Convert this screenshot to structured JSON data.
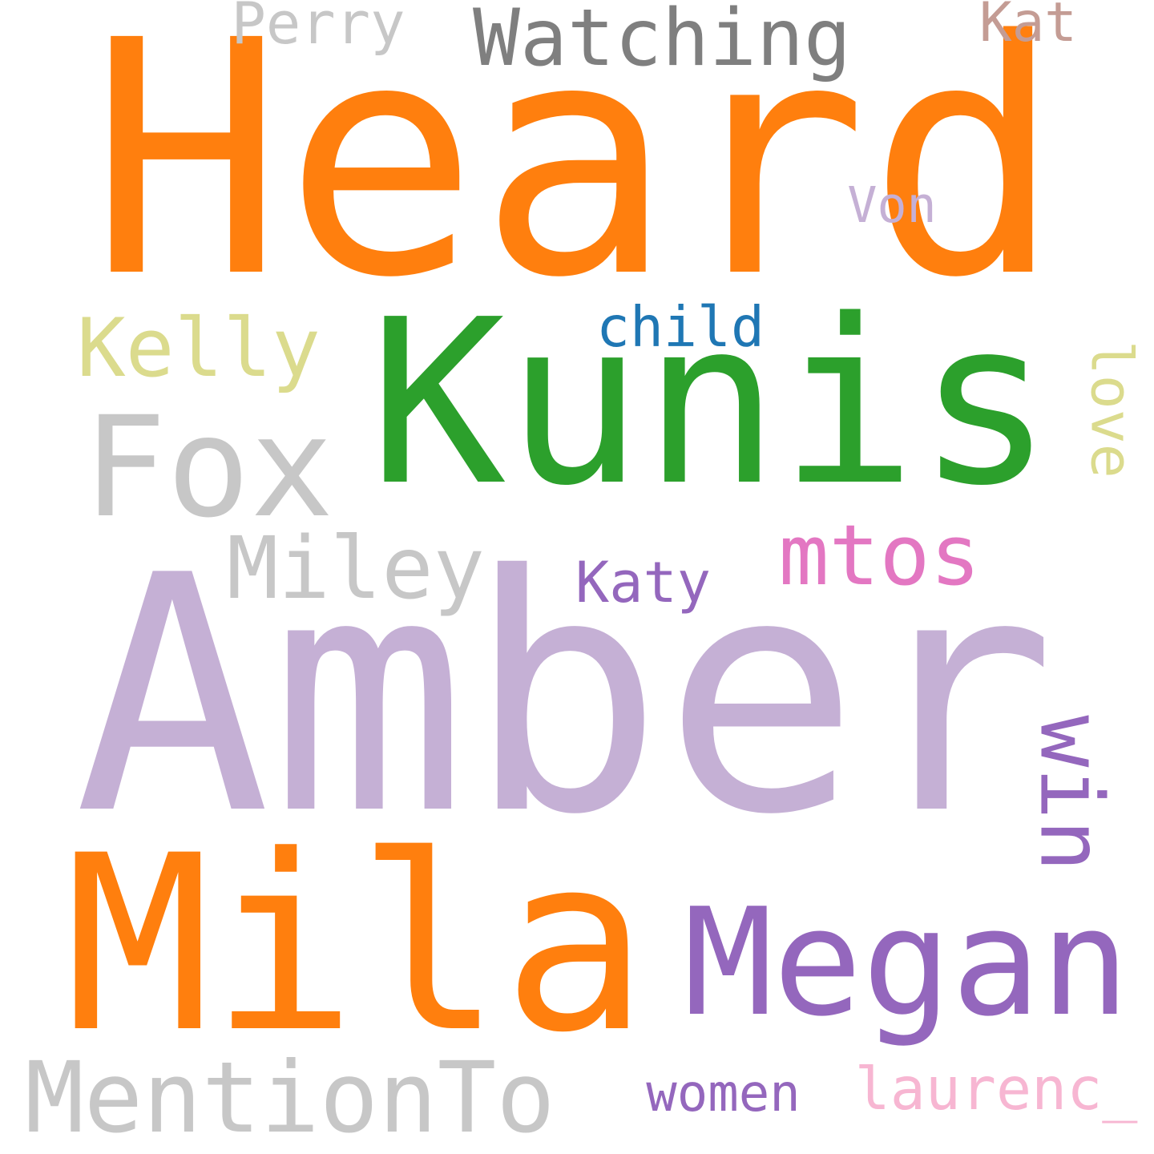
{
  "words": [
    {
      "id": "heard",
      "text": "Heard",
      "color": "#ff7f0e"
    },
    {
      "id": "amber",
      "text": "Amber",
      "color": "#c5b0d5"
    },
    {
      "id": "kunis",
      "text": "Kunis",
      "color": "#2ca02c"
    },
    {
      "id": "mila",
      "text": "Mila",
      "color": "#ff7f0e"
    },
    {
      "id": "megan",
      "text": "Megan",
      "color": "#9467bd"
    },
    {
      "id": "fox",
      "text": "Fox",
      "color": "#c7c7c7"
    },
    {
      "id": "mention-to",
      "text": "MentionTo",
      "color": "#c7c7c7"
    },
    {
      "id": "win",
      "text": "win",
      "color": "#9467bd",
      "rotated": true
    },
    {
      "id": "mtos",
      "text": "mtos",
      "color": "#e377c2"
    },
    {
      "id": "miley",
      "text": "Miley",
      "color": "#c7c7c7"
    },
    {
      "id": "watching",
      "text": "Watching",
      "color": "#7f7f7f"
    },
    {
      "id": "kelly",
      "text": "Kelly",
      "color": "#dbdb8d"
    },
    {
      "id": "women",
      "text": "women",
      "color": "#9467bd"
    },
    {
      "id": "laurenc",
      "text": "laurenc_",
      "color": "#f7b6d2"
    },
    {
      "id": "child",
      "text": "child",
      "color": "#1f77b4"
    },
    {
      "id": "katy",
      "text": "Katy",
      "color": "#9467bd"
    },
    {
      "id": "perry",
      "text": "Perry",
      "color": "#c7c7c7"
    },
    {
      "id": "kat",
      "text": "Kat",
      "color": "#c49c94"
    },
    {
      "id": "von",
      "text": "Von",
      "color": "#c5b0d5"
    },
    {
      "id": "love",
      "text": "love",
      "color": "#dbdb8d",
      "rotated": true
    }
  ]
}
